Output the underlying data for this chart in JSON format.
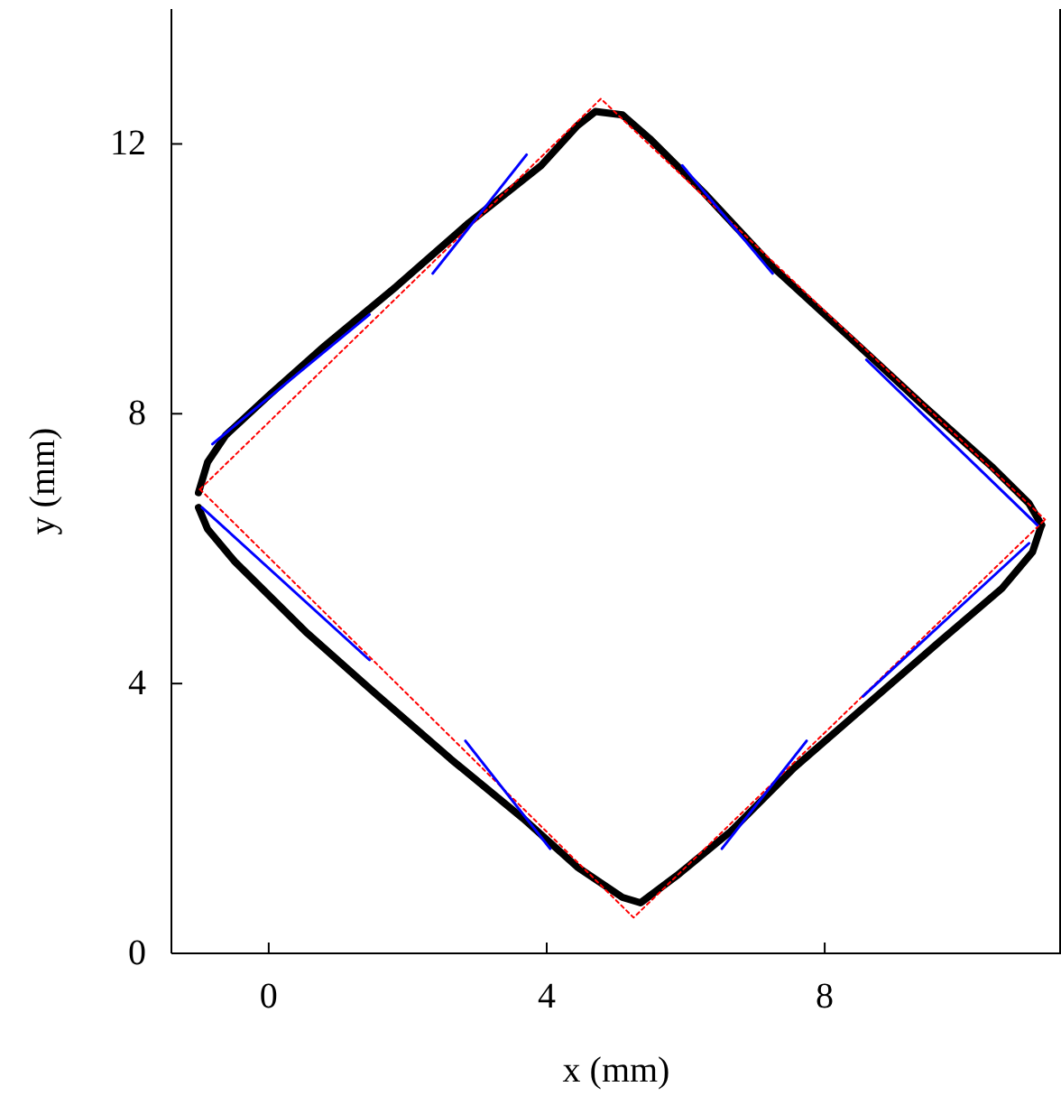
{
  "chart_data": {
    "type": "line",
    "xlabel": "x (mm)",
    "ylabel": "y (mm)",
    "xlim": [
      -1.4,
      11.4
    ],
    "ylim": [
      0,
      14
    ],
    "xticks": [
      0,
      4,
      8
    ],
    "yticks": [
      0,
      4,
      8,
      12
    ],
    "marker": "none",
    "series": [
      {
        "color": "#000000",
        "line_style": "solid",
        "x": [
          -1.01,
          -0.88,
          -0.62,
          0,
          0.81,
          1.84,
          2.88,
          3.92,
          4.44,
          4.7,
          5.09,
          5.48,
          6.26,
          7.3,
          8.34,
          9.38,
          10.42,
          10.94,
          11.12
        ],
        "values": [
          6.83,
          7.28,
          7.68,
          8.27,
          9.01,
          9.89,
          10.83,
          11.68,
          12.27,
          12.48,
          12.43,
          12.08,
          11.28,
          10.13,
          9.15,
          8.16,
          7.2,
          6.67,
          6.35
        ]
      },
      {
        "color": "#000000",
        "line_style": "solid",
        "x": [
          -1.01,
          -0.88,
          -0.49,
          0.55,
          1.58,
          2.62,
          3.66,
          4.44,
          5.09,
          5.35,
          5.87,
          6.65,
          7.56,
          8.6,
          9.64,
          10.55,
          10.99,
          11.12
        ],
        "values": [
          6.61,
          6.29,
          5.81,
          4.75,
          3.81,
          2.88,
          2,
          1.28,
          0.83,
          0.75,
          1.15,
          1.81,
          2.75,
          3.68,
          4.61,
          5.41,
          5.95,
          6.35
        ]
      },
      {
        "color": "#ff0000",
        "line_style": "dotted",
        "x": [
          -0.99,
          4.78,
          11.17
        ],
        "values": [
          6.88,
          12.67,
          6.43
        ]
      },
      {
        "color": "#ff0000",
        "line_style": "dotted",
        "x": [
          -0.99,
          5.25,
          11.17
        ],
        "values": [
          6.88,
          0.53,
          6.43
        ]
      },
      {
        "color": "#0000ff",
        "line_style": "solid",
        "x": [
          -0.81,
          1.45
        ],
        "values": [
          7.55,
          9.47
        ]
      },
      {
        "color": "#0000ff",
        "line_style": "solid",
        "x": [
          2.36,
          3.71
        ],
        "values": [
          10.08,
          11.84
        ]
      },
      {
        "color": "#0000ff",
        "line_style": "solid",
        "x": [
          5.95,
          7.25
        ],
        "values": [
          11.68,
          10.08
        ]
      },
      {
        "color": "#0000ff",
        "line_style": "solid",
        "x": [
          8.6,
          11.06
        ],
        "values": [
          8.8,
          6.35
        ]
      },
      {
        "color": "#0000ff",
        "line_style": "solid",
        "x": [
          8.55,
          10.94
        ],
        "values": [
          3.81,
          6.08
        ]
      },
      {
        "color": "#0000ff",
        "line_style": "solid",
        "x": [
          6.52,
          7.74
        ],
        "values": [
          1.55,
          3.15
        ]
      },
      {
        "color": "#0000ff",
        "line_style": "solid",
        "x": [
          2.83,
          4.05
        ],
        "values": [
          3.15,
          1.55
        ]
      },
      {
        "color": "#0000ff",
        "line_style": "solid",
        "x": [
          -0.96,
          1.45
        ],
        "values": [
          6.61,
          4.35
        ]
      }
    ]
  }
}
